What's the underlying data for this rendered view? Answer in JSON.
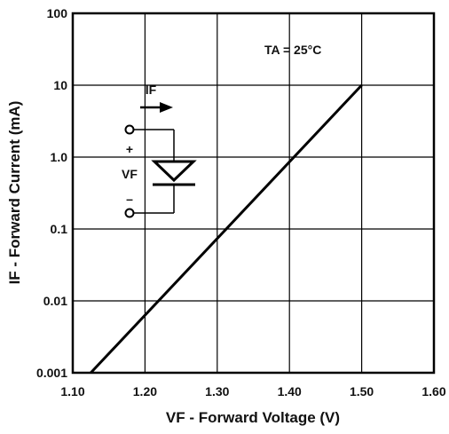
{
  "chart_data": {
    "type": "line",
    "title": "",
    "xlabel": "VF - Forward Voltage (V)",
    "ylabel": "IF - Forward Current (mA)",
    "xlim": [
      1.1,
      1.6
    ],
    "ylim": [
      0.001,
      100
    ],
    "y_scale": "log",
    "grid": true,
    "x_tick_labels": [
      "1.10",
      "1.20",
      "1.30",
      "1.40",
      "1.50",
      "1.60"
    ],
    "y_tick_labels": [
      "0.001",
      "0.01",
      "0.1",
      "1.0",
      "10",
      "100"
    ],
    "series": [
      {
        "x": [
          1.125,
          1.5
        ],
        "y": [
          0.001,
          10
        ]
      }
    ],
    "annotations": {
      "temperature": "TA = 25°C",
      "current_symbol": "IF",
      "voltage_symbol": "VF",
      "plus": "+",
      "minus": "–"
    },
    "colors": {
      "line": "#000000",
      "grid": "#000000",
      "background": "#ffffff"
    }
  }
}
